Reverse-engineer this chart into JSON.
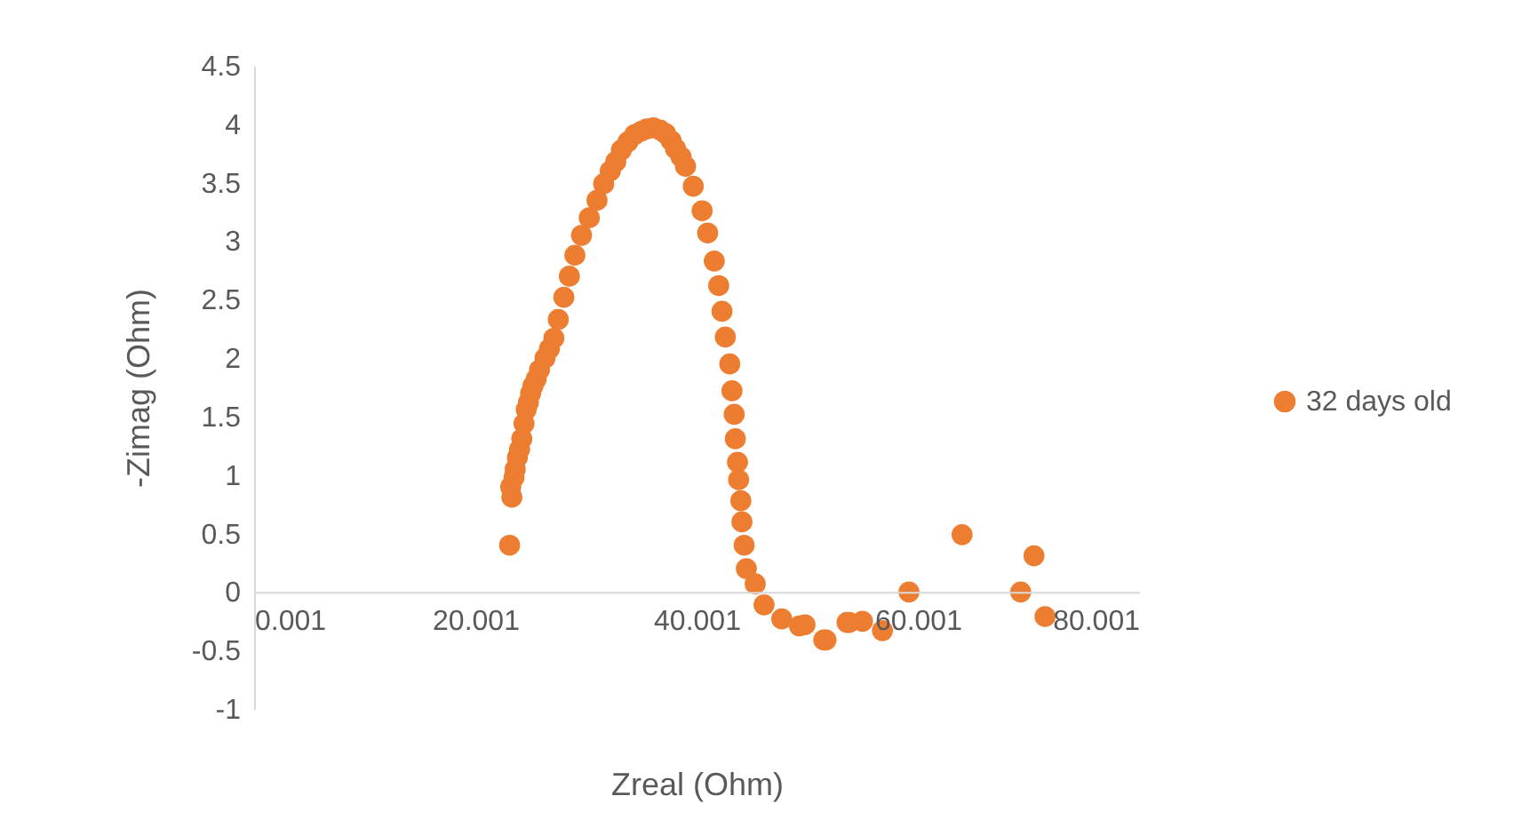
{
  "chart_data": {
    "type": "scatter",
    "xlabel": "Zreal (Ohm)",
    "ylabel": "-Zimag (Ohm)",
    "xlim": [
      0.001,
      80.001
    ],
    "xticks": [
      0.001,
      20.001,
      40.001,
      60.001,
      80.001
    ],
    "ylim": [
      -1,
      4.5
    ],
    "yticks": [
      -1,
      -0.5,
      0,
      0.5,
      1,
      1.5,
      2,
      2.5,
      3,
      3.5,
      4,
      4.5
    ],
    "grid": false,
    "legend": "right",
    "marker": "circle",
    "series": [
      {
        "name": "32 days old",
        "color": "#ed7d31",
        "x": [
          23.1,
          23.2,
          23.3,
          23.5,
          23.6,
          23.8,
          24.0,
          24.2,
          24.4,
          24.6,
          24.8,
          25.0,
          25.2,
          25.5,
          25.8,
          26.3,
          26.7,
          27.1,
          27.5,
          28.0,
          28.5,
          29.0,
          29.6,
          30.3,
          31.0,
          31.6,
          32.2,
          32.7,
          33.2,
          33.8,
          34.4,
          35.0,
          35.5,
          36.1,
          36.7,
          37.2,
          37.7,
          38.1,
          38.6,
          39.0,
          39.7,
          40.5,
          41.0,
          41.6,
          42.0,
          42.3,
          42.6,
          43.0,
          43.2,
          43.4,
          43.5,
          43.7,
          43.8,
          44.0,
          44.1,
          44.3,
          44.5,
          45.3,
          46.1,
          47.7,
          49.3,
          49.8,
          51.5,
          51.7,
          53.6,
          53.8,
          55.0,
          56.8,
          59.2,
          64.0,
          69.3,
          70.5,
          71.5
        ],
        "values": [
          0.4,
          0.9,
          0.81,
          0.98,
          1.05,
          1.15,
          1.22,
          1.31,
          1.44,
          1.56,
          1.62,
          1.7,
          1.76,
          1.82,
          1.9,
          2.0,
          2.08,
          2.17,
          2.33,
          2.52,
          2.7,
          2.88,
          3.05,
          3.2,
          3.35,
          3.49,
          3.6,
          3.68,
          3.78,
          3.85,
          3.91,
          3.94,
          3.96,
          3.97,
          3.95,
          3.92,
          3.86,
          3.79,
          3.72,
          3.64,
          3.47,
          3.26,
          3.07,
          2.83,
          2.62,
          2.4,
          2.18,
          1.95,
          1.72,
          1.52,
          1.31,
          1.11,
          0.96,
          0.78,
          0.6,
          0.4,
          0.2,
          0.07,
          -0.11,
          -0.23,
          -0.29,
          -0.28,
          -0.41,
          -0.41,
          -0.26,
          -0.26,
          -0.25,
          -0.33,
          0,
          0.49,
          0,
          0.31,
          -0.21
        ]
      }
    ]
  }
}
